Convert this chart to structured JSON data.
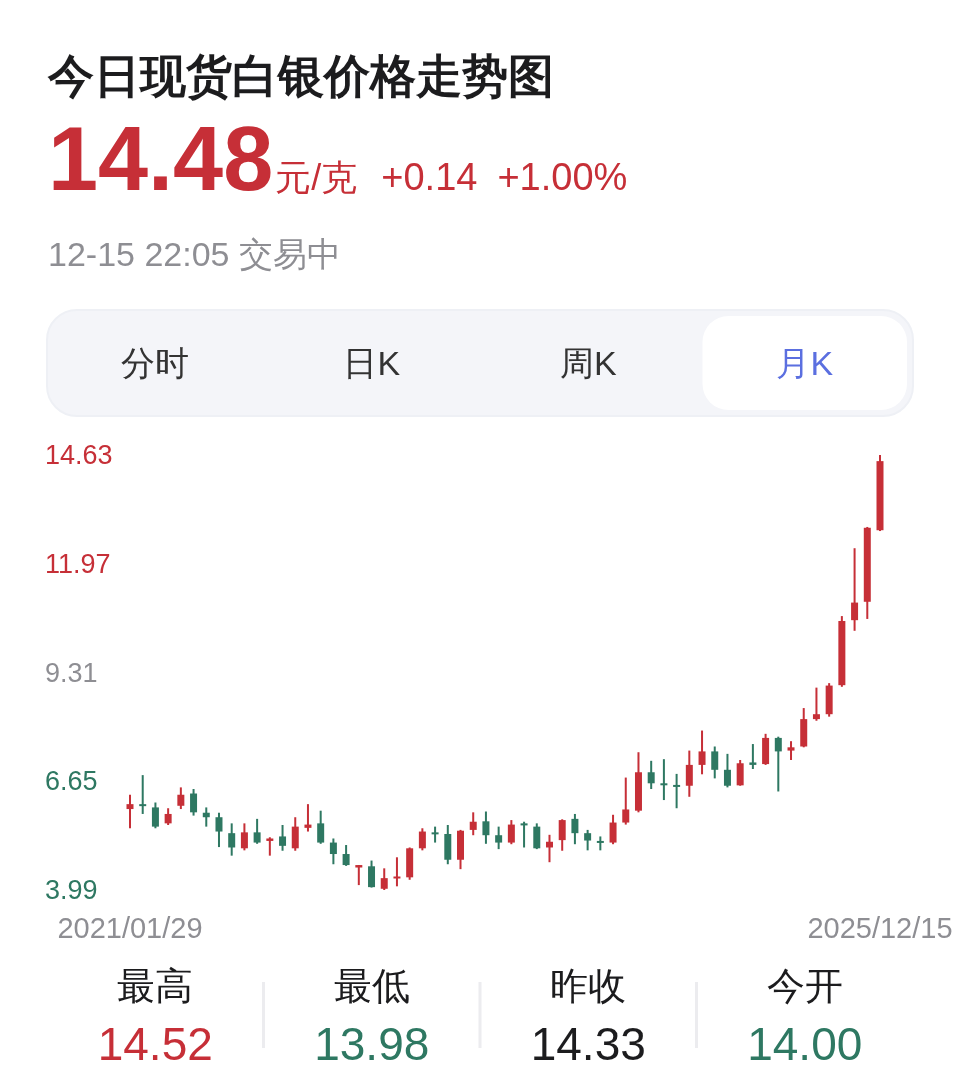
{
  "chart_data": {
    "type": "candlestick",
    "title": "今日现货白银价格走势图",
    "categories": [
      "2021/01/29",
      null,
      null,
      null,
      null,
      null,
      null,
      null,
      null,
      null,
      null,
      null,
      null,
      null,
      null,
      null,
      null,
      null,
      null,
      null,
      null,
      null,
      null,
      null,
      null,
      null,
      null,
      null,
      null,
      null,
      null,
      null,
      null,
      null,
      null,
      null,
      null,
      null,
      null,
      null,
      null,
      null,
      null,
      null,
      null,
      null,
      null,
      null,
      null,
      null,
      null,
      null,
      null,
      null,
      null,
      null,
      null,
      null,
      null,
      "2025/12/15"
    ],
    "ohlc": [
      [
        5.97,
        6.32,
        5.5,
        6.09
      ],
      [
        6.09,
        6.8,
        5.85,
        6.05
      ],
      [
        6.01,
        6.13,
        5.5,
        5.54
      ],
      [
        5.62,
        5.99,
        5.58,
        5.85
      ],
      [
        6.05,
        6.5,
        5.97,
        6.32
      ],
      [
        6.35,
        6.46,
        5.81,
        5.89
      ],
      [
        5.88,
        6.01,
        5.54,
        5.77
      ],
      [
        5.77,
        5.88,
        5.04,
        5.42
      ],
      [
        5.38,
        5.62,
        4.83,
        5.03
      ],
      [
        5.01,
        5.62,
        4.96,
        5.4
      ],
      [
        5.4,
        5.73,
        5.12,
        5.15
      ],
      [
        5.19,
        5.28,
        4.83,
        5.25
      ],
      [
        5.3,
        5.58,
        4.95,
        5.07
      ],
      [
        5.01,
        5.77,
        4.95,
        5.54
      ],
      [
        5.51,
        6.09,
        5.42,
        5.59
      ],
      [
        5.62,
        5.93,
        5.12,
        5.15
      ],
      [
        5.15,
        5.25,
        4.62,
        4.87
      ],
      [
        4.87,
        5.09,
        4.58,
        4.6
      ],
      [
        4.54,
        4.6,
        4.11,
        4.6
      ],
      [
        4.57,
        4.71,
        4.05,
        4.06
      ],
      [
        4.02,
        4.52,
        3.99,
        4.28
      ],
      [
        4.28,
        4.79,
        4.08,
        4.32
      ],
      [
        4.3,
        5.03,
        4.24,
        5.01
      ],
      [
        5.01,
        5.5,
        4.96,
        5.42
      ],
      [
        5.4,
        5.54,
        5.15,
        5.37
      ],
      [
        5.36,
        5.58,
        4.62,
        4.73
      ],
      [
        4.73,
        5.46,
        4.5,
        5.44
      ],
      [
        5.46,
        5.89,
        5.33,
        5.66
      ],
      [
        5.67,
        5.91,
        5.12,
        5.33
      ],
      [
        5.33,
        5.54,
        4.99,
        5.15
      ],
      [
        5.15,
        5.7,
        5.11,
        5.59
      ],
      [
        5.62,
        5.66,
        5.03,
        5.57
      ],
      [
        5.54,
        5.62,
        4.99,
        5.01
      ],
      [
        5.03,
        5.34,
        4.67,
        5.17
      ],
      [
        5.21,
        5.72,
        4.95,
        5.7
      ],
      [
        5.73,
        5.85,
        5.11,
        5.38
      ],
      [
        5.38,
        5.46,
        4.96,
        5.2
      ],
      [
        5.19,
        5.3,
        4.96,
        5.15
      ],
      [
        5.15,
        5.83,
        5.11,
        5.64
      ],
      [
        5.64,
        6.74,
        5.59,
        5.96
      ],
      [
        5.93,
        7.36,
        5.89,
        6.87
      ],
      [
        6.87,
        7.15,
        6.46,
        6.6
      ],
      [
        6.6,
        7.19,
        6.19,
        6.56
      ],
      [
        6.56,
        6.83,
        5.99,
        6.54
      ],
      [
        6.54,
        7.4,
        6.27,
        7.05
      ],
      [
        7.05,
        7.89,
        6.82,
        7.38
      ],
      [
        7.38,
        7.5,
        6.72,
        6.93
      ],
      [
        6.93,
        7.32,
        6.5,
        6.54
      ],
      [
        6.55,
        7.17,
        6.54,
        7.09
      ],
      [
        7.11,
        7.56,
        6.95,
        7.05
      ],
      [
        7.07,
        7.81,
        7.05,
        7.71
      ],
      [
        7.71,
        7.74,
        6.4,
        7.38
      ],
      [
        7.4,
        7.63,
        7.17,
        7.48
      ],
      [
        7.5,
        8.44,
        7.48,
        8.17
      ],
      [
        8.17,
        8.94,
        8.13,
        8.29
      ],
      [
        8.29,
        9.05,
        8.23,
        8.99
      ],
      [
        9.0,
        10.69,
        8.96,
        10.57
      ],
      [
        10.59,
        12.35,
        10.33,
        11.02
      ],
      [
        11.04,
        12.87,
        10.62,
        12.85
      ],
      [
        12.79,
        14.63,
        12.77,
        14.48
      ]
    ],
    "colors": [
      "#c62f37",
      "#2e7862",
      "#2e7862",
      "#c62f37",
      "#c62f37",
      "#2e7862",
      "#2e7862",
      "#2e7862",
      "#2e7862",
      "#c62f37",
      "#2e7862",
      "#c62f37",
      "#2e7862",
      "#c62f37",
      "#c62f37",
      "#2e7862",
      "#2e7862",
      "#2e7862",
      "#c62f37",
      "#2e7862",
      "#c62f37",
      "#c62f37",
      "#c62f37",
      "#c62f37",
      "#2e7862",
      "#2e7862",
      "#c62f37",
      "#c62f37",
      "#2e7862",
      "#2e7862",
      "#c62f37",
      "#2e7862",
      "#2e7862",
      "#c62f37",
      "#c62f37",
      "#2e7862",
      "#2e7862",
      "#2e7862",
      "#c62f37",
      "#c62f37",
      "#c62f37",
      "#2e7862",
      "#2e7862",
      "#2e7862",
      "#c62f37",
      "#c62f37",
      "#2e7862",
      "#2e7862",
      "#c62f37",
      "#2e7862",
      "#c62f37",
      "#2e7862",
      "#c62f37",
      "#c62f37",
      "#c62f37",
      "#c62f37",
      "#c62f37",
      "#c62f37",
      "#c62f37",
      "#c62f37"
    ],
    "ylim": [
      3.99,
      14.63
    ],
    "yticks": [
      14.63,
      11.97,
      9.31,
      6.65,
      3.99
    ],
    "annotations": [
      "14.48",
      "元/克",
      "+0.14",
      "+1.00%",
      "12-15 22:05 交易中",
      "分时",
      "日K",
      "周K",
      "月K",
      "最高",
      "14.52",
      "最低",
      "13.98",
      "昨收",
      "14.33",
      "今开",
      "14.00"
    ]
  }
}
